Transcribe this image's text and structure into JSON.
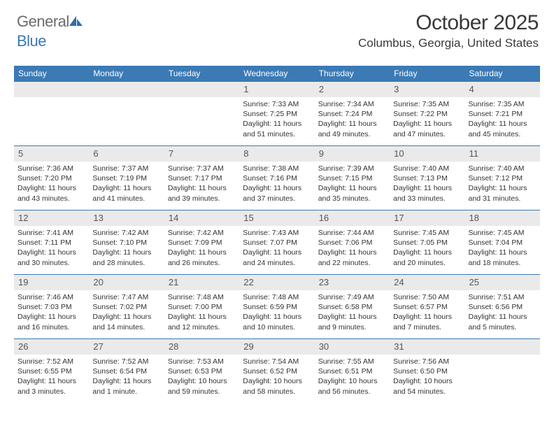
{
  "logo": {
    "general": "General",
    "blue": "Blue"
  },
  "title": "October 2025",
  "location": "Columbus, Georgia, United States",
  "header_row_color": "#3b7ab5",
  "header_text_color": "#ffffff",
  "daynum_bg": "#eaeaea",
  "day_border_top": "#3b7ab5",
  "body_text_color": "#333333",
  "font_family": "Arial",
  "weekdays": [
    "Sunday",
    "Monday",
    "Tuesday",
    "Wednesday",
    "Thursday",
    "Friday",
    "Saturday"
  ],
  "grid": [
    [
      {
        "empty": true
      },
      {
        "empty": true
      },
      {
        "empty": true
      },
      {
        "day": "1",
        "sunrise": "7:33 AM",
        "sunset": "7:25 PM",
        "dayh": "11",
        "daym": "51"
      },
      {
        "day": "2",
        "sunrise": "7:34 AM",
        "sunset": "7:24 PM",
        "dayh": "11",
        "daym": "49"
      },
      {
        "day": "3",
        "sunrise": "7:35 AM",
        "sunset": "7:22 PM",
        "dayh": "11",
        "daym": "47"
      },
      {
        "day": "4",
        "sunrise": "7:35 AM",
        "sunset": "7:21 PM",
        "dayh": "11",
        "daym": "45"
      }
    ],
    [
      {
        "day": "5",
        "sunrise": "7:36 AM",
        "sunset": "7:20 PM",
        "dayh": "11",
        "daym": "43"
      },
      {
        "day": "6",
        "sunrise": "7:37 AM",
        "sunset": "7:19 PM",
        "dayh": "11",
        "daym": "41"
      },
      {
        "day": "7",
        "sunrise": "7:37 AM",
        "sunset": "7:17 PM",
        "dayh": "11",
        "daym": "39"
      },
      {
        "day": "8",
        "sunrise": "7:38 AM",
        "sunset": "7:16 PM",
        "dayh": "11",
        "daym": "37"
      },
      {
        "day": "9",
        "sunrise": "7:39 AM",
        "sunset": "7:15 PM",
        "dayh": "11",
        "daym": "35"
      },
      {
        "day": "10",
        "sunrise": "7:40 AM",
        "sunset": "7:13 PM",
        "dayh": "11",
        "daym": "33"
      },
      {
        "day": "11",
        "sunrise": "7:40 AM",
        "sunset": "7:12 PM",
        "dayh": "11",
        "daym": "31"
      }
    ],
    [
      {
        "day": "12",
        "sunrise": "7:41 AM",
        "sunset": "7:11 PM",
        "dayh": "11",
        "daym": "30"
      },
      {
        "day": "13",
        "sunrise": "7:42 AM",
        "sunset": "7:10 PM",
        "dayh": "11",
        "daym": "28"
      },
      {
        "day": "14",
        "sunrise": "7:42 AM",
        "sunset": "7:09 PM",
        "dayh": "11",
        "daym": "26"
      },
      {
        "day": "15",
        "sunrise": "7:43 AM",
        "sunset": "7:07 PM",
        "dayh": "11",
        "daym": "24"
      },
      {
        "day": "16",
        "sunrise": "7:44 AM",
        "sunset": "7:06 PM",
        "dayh": "11",
        "daym": "22"
      },
      {
        "day": "17",
        "sunrise": "7:45 AM",
        "sunset": "7:05 PM",
        "dayh": "11",
        "daym": "20"
      },
      {
        "day": "18",
        "sunrise": "7:45 AM",
        "sunset": "7:04 PM",
        "dayh": "11",
        "daym": "18"
      }
    ],
    [
      {
        "day": "19",
        "sunrise": "7:46 AM",
        "sunset": "7:03 PM",
        "dayh": "11",
        "daym": "16"
      },
      {
        "day": "20",
        "sunrise": "7:47 AM",
        "sunset": "7:02 PM",
        "dayh": "11",
        "daym": "14"
      },
      {
        "day": "21",
        "sunrise": "7:48 AM",
        "sunset": "7:00 PM",
        "dayh": "11",
        "daym": "12"
      },
      {
        "day": "22",
        "sunrise": "7:48 AM",
        "sunset": "6:59 PM",
        "dayh": "11",
        "daym": "10"
      },
      {
        "day": "23",
        "sunrise": "7:49 AM",
        "sunset": "6:58 PM",
        "dayh": "11",
        "daym": "9"
      },
      {
        "day": "24",
        "sunrise": "7:50 AM",
        "sunset": "6:57 PM",
        "dayh": "11",
        "daym": "7"
      },
      {
        "day": "25",
        "sunrise": "7:51 AM",
        "sunset": "6:56 PM",
        "dayh": "11",
        "daym": "5"
      }
    ],
    [
      {
        "day": "26",
        "sunrise": "7:52 AM",
        "sunset": "6:55 PM",
        "dayh": "11",
        "daym": "3"
      },
      {
        "day": "27",
        "sunrise": "7:52 AM",
        "sunset": "6:54 PM",
        "dayh": "11",
        "daym": "1"
      },
      {
        "day": "28",
        "sunrise": "7:53 AM",
        "sunset": "6:53 PM",
        "dayh": "10",
        "daym": "59"
      },
      {
        "day": "29",
        "sunrise": "7:54 AM",
        "sunset": "6:52 PM",
        "dayh": "10",
        "daym": "58"
      },
      {
        "day": "30",
        "sunrise": "7:55 AM",
        "sunset": "6:51 PM",
        "dayh": "10",
        "daym": "56"
      },
      {
        "day": "31",
        "sunrise": "7:56 AM",
        "sunset": "6:50 PM",
        "dayh": "10",
        "daym": "54"
      },
      {
        "empty": true
      }
    ]
  ],
  "labels": {
    "sunrise": "Sunrise:",
    "sunset": "Sunset:",
    "daylight": "Daylight:",
    "hours": "hours",
    "and": "and",
    "minute": "minute",
    "minutes": "minutes"
  }
}
